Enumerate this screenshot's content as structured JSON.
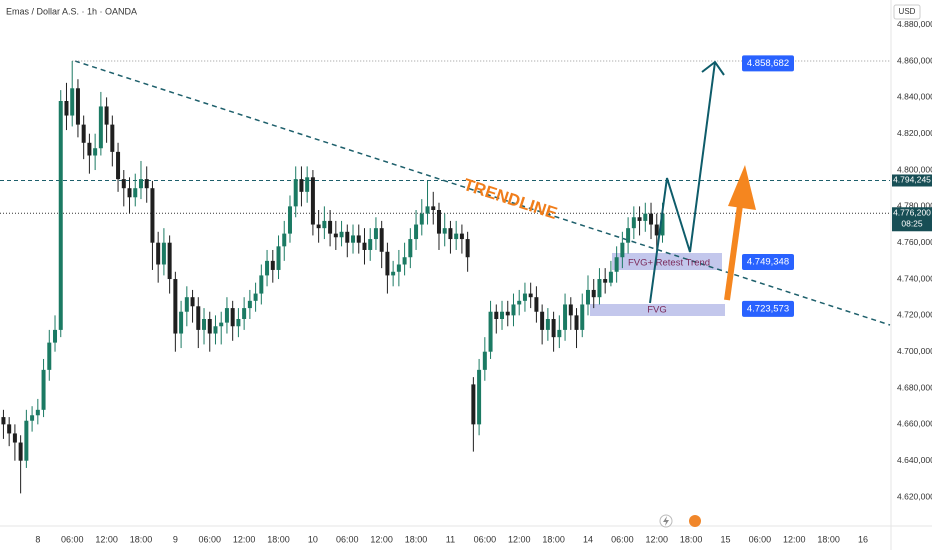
{
  "chart_data": {
    "type": "candlestick",
    "title": "Emas / Dollar A.S. · 1h · OANDA",
    "currency": "USD",
    "up_color": "#1b7a63",
    "down_color": "#1f1f1f",
    "open": [
      4.664,
      4.66,
      4.655,
      4.65,
      4.64,
      4.662,
      4.665,
      4.668,
      4.69,
      4.705,
      4.712,
      4.838,
      4.83,
      4.845,
      4.825,
      4.815,
      4.808,
      4.812,
      4.835,
      4.825,
      4.81,
      4.795,
      4.79,
      4.785,
      4.79,
      4.795,
      4.79,
      4.76,
      4.748,
      4.76,
      4.74,
      4.71,
      4.722,
      4.73,
      4.725,
      4.712,
      4.718,
      4.71,
      4.714,
      4.716,
      4.724,
      4.714,
      4.718,
      4.724,
      4.728,
      4.732,
      4.742,
      4.75,
      4.745,
      4.758,
      4.765,
      4.78,
      4.795,
      4.788,
      4.796,
      4.77,
      4.768,
      4.772,
      4.765,
      4.763,
      4.766,
      4.76,
      4.764,
      4.76,
      4.756,
      4.762,
      4.768,
      4.755,
      4.742,
      4.744,
      4.748,
      4.752,
      4.762,
      4.77,
      4.776,
      4.78,
      4.778,
      4.765,
      4.768,
      4.762,
      4.765,
      4.762,
      4.682,
      4.66,
      4.69,
      4.7,
      4.722,
      4.718,
      4.722,
      4.72,
      4.726,
      4.728,
      4.732,
      4.73,
      4.722,
      4.712,
      4.718,
      4.708,
      4.712,
      4.726,
      4.72,
      4.712,
      4.726,
      4.734,
      4.73,
      4.74,
      4.738,
      4.744,
      4.752,
      4.76,
      4.768,
      4.774,
      4.772,
      4.776,
      4.77,
      4.764
    ],
    "high": [
      4.668,
      4.664,
      4.66,
      4.654,
      4.668,
      4.67,
      4.674,
      4.696,
      4.712,
      4.72,
      4.844,
      4.848,
      4.86,
      4.85,
      4.83,
      4.82,
      4.82,
      4.843,
      4.84,
      4.83,
      4.815,
      4.8,
      4.796,
      4.798,
      4.805,
      4.802,
      4.794,
      4.766,
      4.768,
      4.764,
      4.744,
      4.728,
      4.736,
      4.734,
      4.73,
      4.724,
      4.722,
      4.72,
      4.722,
      4.73,
      4.728,
      4.724,
      4.73,
      4.734,
      4.738,
      4.748,
      4.756,
      4.756,
      4.764,
      4.772,
      4.786,
      4.802,
      4.802,
      4.802,
      4.8,
      4.778,
      4.78,
      4.778,
      4.772,
      4.772,
      4.77,
      4.77,
      4.77,
      4.768,
      4.768,
      4.774,
      4.772,
      4.76,
      4.75,
      4.756,
      4.76,
      4.768,
      4.778,
      4.784,
      4.794,
      4.788,
      4.782,
      4.776,
      4.772,
      4.772,
      4.77,
      4.766,
      4.686,
      4.696,
      4.708,
      4.728,
      4.726,
      4.728,
      4.728,
      4.732,
      4.734,
      4.738,
      4.738,
      4.736,
      4.726,
      4.724,
      4.722,
      4.72,
      4.732,
      4.73,
      4.724,
      4.732,
      4.742,
      4.74,
      4.746,
      4.746,
      4.75,
      4.758,
      4.766,
      4.774,
      4.78,
      4.78,
      4.782,
      4.782,
      4.776,
      4.782
    ],
    "low": [
      4.652,
      4.648,
      4.64,
      4.622,
      4.636,
      4.656,
      4.66,
      4.664,
      4.684,
      4.7,
      4.708,
      4.822,
      4.824,
      4.818,
      4.806,
      4.798,
      4.8,
      4.808,
      4.815,
      4.802,
      4.788,
      4.78,
      4.776,
      4.78,
      4.784,
      4.782,
      4.745,
      4.738,
      4.742,
      4.732,
      4.7,
      4.702,
      4.714,
      4.716,
      4.702,
      4.704,
      4.7,
      4.704,
      4.704,
      4.71,
      4.706,
      4.708,
      4.712,
      4.718,
      4.722,
      4.726,
      4.736,
      4.738,
      4.74,
      4.75,
      4.76,
      4.774,
      4.78,
      4.782,
      4.764,
      4.76,
      4.762,
      4.758,
      4.756,
      4.758,
      4.752,
      4.754,
      4.754,
      4.748,
      4.75,
      4.756,
      4.746,
      4.732,
      4.736,
      4.736,
      4.742,
      4.746,
      4.756,
      4.764,
      4.77,
      4.77,
      4.756,
      4.758,
      4.754,
      4.756,
      4.754,
      4.744,
      4.645,
      4.654,
      4.684,
      4.696,
      4.71,
      4.712,
      4.714,
      4.714,
      4.72,
      4.722,
      4.724,
      4.716,
      4.704,
      4.706,
      4.7,
      4.702,
      4.706,
      4.712,
      4.702,
      4.708,
      4.72,
      4.724,
      4.726,
      4.732,
      4.736,
      4.738,
      4.746,
      4.754,
      4.762,
      4.764,
      4.766,
      4.762,
      4.756,
      4.76
    ],
    "close": [
      4.66,
      4.655,
      4.65,
      4.64,
      4.662,
      4.665,
      4.668,
      4.69,
      4.705,
      4.712,
      4.838,
      4.83,
      4.845,
      4.825,
      4.815,
      4.808,
      4.812,
      4.835,
      4.825,
      4.81,
      4.795,
      4.79,
      4.785,
      4.79,
      4.795,
      4.79,
      4.76,
      4.748,
      4.76,
      4.74,
      4.71,
      4.722,
      4.73,
      4.725,
      4.712,
      4.718,
      4.71,
      4.714,
      4.716,
      4.724,
      4.714,
      4.718,
      4.724,
      4.728,
      4.732,
      4.742,
      4.75,
      4.745,
      4.758,
      4.765,
      4.78,
      4.795,
      4.788,
      4.796,
      4.77,
      4.768,
      4.772,
      4.765,
      4.763,
      4.766,
      4.76,
      4.764,
      4.76,
      4.756,
      4.762,
      4.768,
      4.755,
      4.742,
      4.744,
      4.748,
      4.752,
      4.762,
      4.77,
      4.776,
      4.78,
      4.778,
      4.765,
      4.768,
      4.762,
      4.765,
      4.762,
      4.752,
      4.66,
      4.69,
      4.7,
      4.722,
      4.718,
      4.722,
      4.72,
      4.726,
      4.728,
      4.732,
      4.73,
      4.722,
      4.712,
      4.718,
      4.708,
      4.712,
      4.726,
      4.72,
      4.712,
      4.726,
      4.734,
      4.73,
      4.74,
      4.738,
      4.744,
      4.752,
      4.76,
      4.768,
      4.774,
      4.772,
      4.776,
      4.77,
      4.764,
      4.776
    ],
    "xlim": [
      -0.6,
      154.7
    ],
    "xticks": [
      {
        "value": 6,
        "label": "8"
      },
      {
        "value": 12,
        "label": "06:00"
      },
      {
        "value": 18,
        "label": "12:00"
      },
      {
        "value": 24,
        "label": "18:00"
      },
      {
        "value": 30,
        "label": "9"
      },
      {
        "value": 36,
        "label": "06:00"
      },
      {
        "value": 42,
        "label": "12:00"
      },
      {
        "value": 48,
        "label": "18:00"
      },
      {
        "value": 54,
        "label": "10"
      },
      {
        "value": 60,
        "label": "06:00"
      },
      {
        "value": 66,
        "label": "12:00"
      },
      {
        "value": 72,
        "label": "18:00"
      },
      {
        "value": 78,
        "label": "11"
      },
      {
        "value": 84,
        "label": "06:00"
      },
      {
        "value": 90,
        "label": "12:00"
      },
      {
        "value": 96,
        "label": "18:00"
      },
      {
        "value": 102,
        "label": "14"
      },
      {
        "value": 108,
        "label": "06:00"
      },
      {
        "value": 114,
        "label": "12:00"
      },
      {
        "value": 120,
        "label": "18:00"
      },
      {
        "value": 126,
        "label": "15"
      },
      {
        "value": 132,
        "label": "06:00"
      },
      {
        "value": 138,
        "label": "12:00"
      },
      {
        "value": 144,
        "label": "18:00"
      },
      {
        "value": 150,
        "label": "16"
      }
    ],
    "ylim": [
      4.6046,
      4.8936
    ],
    "yticks": [
      {
        "value": 4.62,
        "label": "4.620,000"
      },
      {
        "value": 4.64,
        "label": "4.640,000"
      },
      {
        "value": 4.66,
        "label": "4.660,000"
      },
      {
        "value": 4.68,
        "label": "4.680,000"
      },
      {
        "value": 4.7,
        "label": "4.700,000"
      },
      {
        "value": 4.72,
        "label": "4.720,000"
      },
      {
        "value": 4.74,
        "label": "4.740,000"
      },
      {
        "value": 4.76,
        "label": "4.760,000"
      },
      {
        "value": 4.78,
        "label": "4.780,000"
      },
      {
        "value": 4.8,
        "label": "4.800,000"
      },
      {
        "value": 4.82,
        "label": "4.820,000"
      },
      {
        "value": 4.84,
        "label": "4.840,000"
      },
      {
        "value": 4.86,
        "label": "4.860,000"
      },
      {
        "value": 4.88,
        "label": "4.880,000"
      }
    ],
    "price_lines": [
      {
        "value": 4.794245,
        "label": "4.794,245"
      },
      {
        "value": 4.7762,
        "label": "4.776,200",
        "countdown": "08:25"
      }
    ],
    "target_labels": [
      {
        "value": 4.858682,
        "label": "4.858,682"
      },
      {
        "value": 4.749348,
        "label": "4.749,348"
      },
      {
        "value": 4.723573,
        "label": "4.723,573"
      }
    ],
    "annotations": {
      "trendline": "TRENDLINE",
      "fvg_retest": "FVG+ Retest Trend",
      "fvg": "FVG"
    }
  }
}
